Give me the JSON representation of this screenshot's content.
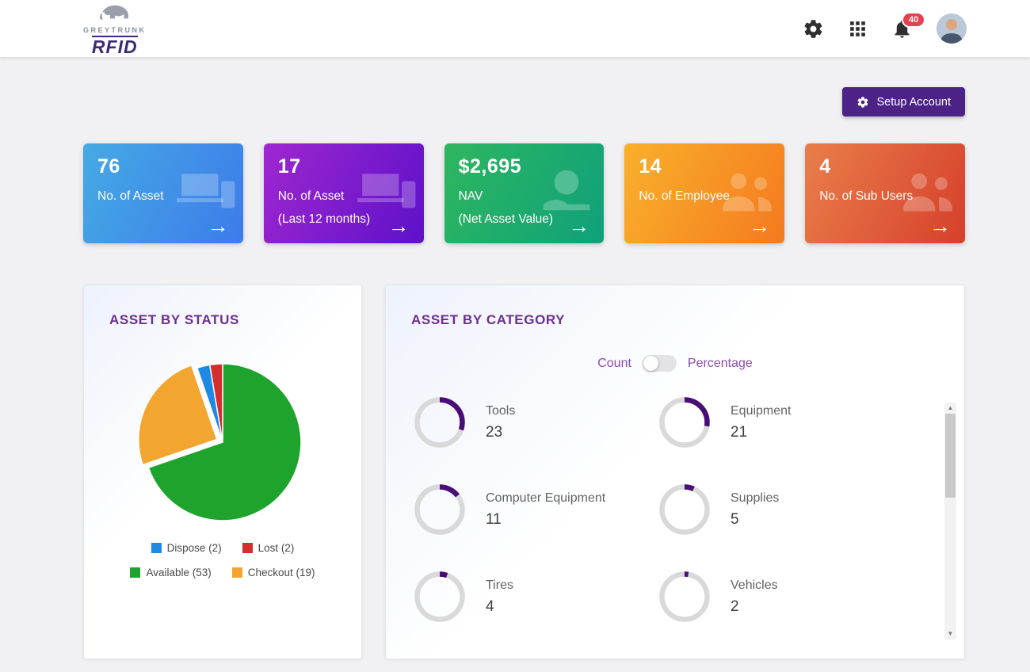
{
  "header": {
    "logo_top": "GREYTRUNK",
    "logo_bottom": "RFID",
    "notification_badge": "40"
  },
  "actions": {
    "setup_account": "Setup Account"
  },
  "colors": {
    "primary_purple": "#4c2287",
    "card_title_purple": "#6e2d92",
    "toggle_label_purple": "#8b4bab",
    "badge_red": "#e6404f"
  },
  "stat_cards": [
    {
      "value": "76",
      "lines": [
        "No. of Asset"
      ],
      "icon": "devices-icon",
      "gradient": [
        "#45aae4",
        "#3d7bea"
      ]
    },
    {
      "value": "17",
      "lines": [
        "No. of Asset",
        "(Last 12 months)"
      ],
      "icon": "devices-icon",
      "gradient": [
        "#9e27d0",
        "#5e11c9"
      ]
    },
    {
      "value": "$2,695",
      "lines": [
        "NAV",
        "(Net Asset Value)"
      ],
      "icon": "hand-coin-icon",
      "gradient": [
        "#2eb65f",
        "#0fa17b"
      ]
    },
    {
      "value": "14",
      "lines": [
        "No. of Employee"
      ],
      "icon": "people-icon",
      "gradient": [
        "#f9b02b",
        "#f47a1f"
      ]
    },
    {
      "value": "4",
      "lines": [
        "No. of Sub Users"
      ],
      "icon": "people-icon",
      "gradient": [
        "#e97e4a",
        "#d6402c"
      ]
    }
  ],
  "status_card": {
    "title": "ASSET BY STATUS",
    "legend": [
      {
        "label": "Dispose (2)",
        "color": "#1e88e5"
      },
      {
        "label": "Lost (2)",
        "color": "#d32f2f"
      },
      {
        "label": "Available (53)",
        "color": "#1ea42d"
      },
      {
        "label": "Checkout (19)",
        "color": "#f2a52f"
      }
    ]
  },
  "category_card": {
    "title": "ASSET BY CATEGORY",
    "toggle_left": "Count",
    "toggle_right": "Percentage"
  },
  "chart_data": [
    {
      "type": "pie",
      "title": "ASSET BY STATUS",
      "labels": [
        "Available",
        "Checkout",
        "Dispose",
        "Lost"
      ],
      "values": [
        53,
        19,
        2,
        2
      ],
      "colors": [
        "#1ea42d",
        "#f2a52f",
        "#1e88e5",
        "#d32f2f"
      ],
      "explode": "Checkout",
      "legend_position": "bottom"
    },
    {
      "type": "donut-grid",
      "title": "ASSET BY CATEGORY",
      "categories": [
        "Tools",
        "Equipment",
        "Computer Equipment",
        "Supplies",
        "Tires",
        "Vehicles"
      ],
      "values": [
        23,
        21,
        11,
        5,
        4,
        2
      ],
      "total": 76,
      "arc_color": "#4a0d77",
      "track_color": "#d9d9d9"
    }
  ]
}
